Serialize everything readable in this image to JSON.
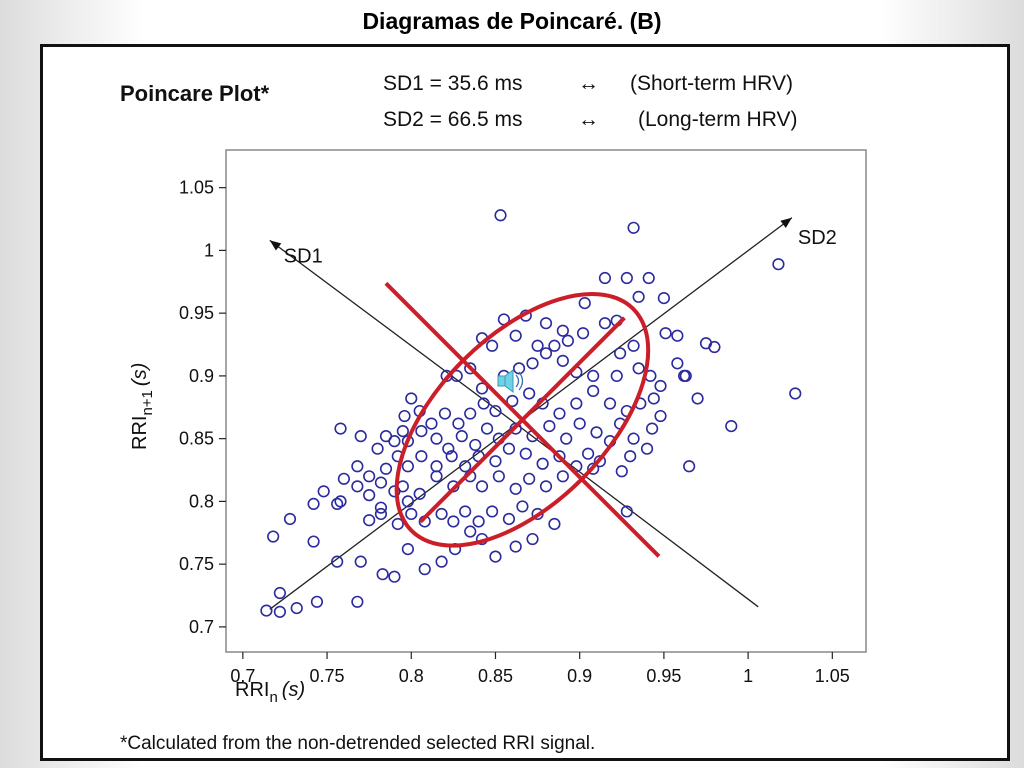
{
  "slide": {
    "title": "Diagramas de Poincaré. (B)"
  },
  "figure": {
    "heading": "Poincare Plot*",
    "sd1_line": {
      "label": "SD1 = 35.6 ms",
      "arrow": "↔",
      "desc": "(Short-term HRV)"
    },
    "sd2_line": {
      "label": "SD2 = 66.5 ms",
      "arrow": "↔",
      "desc": "(Long-term HRV)"
    },
    "footnote": "*Calculated from the non-detrended selected RRI signal."
  },
  "chart_data": {
    "type": "scatter",
    "title": "Poincare Plot*",
    "xlabel": "RRI_n (s)",
    "ylabel": "RRI_n+1 (s)",
    "xlim": [
      0.69,
      1.07
    ],
    "ylim": [
      0.68,
      1.08
    ],
    "x_ticks": [
      "0.7",
      "0.75",
      "0.8",
      "0.85",
      "0.9",
      "0.95",
      "1",
      "1.05"
    ],
    "y_ticks": [
      "0.7",
      "0.75",
      "0.8",
      "0.85",
      "0.9",
      "0.95",
      "1",
      "1.05"
    ],
    "grid": false,
    "marker_color": "#2b2b9e",
    "ellipse_color": "#cc1e28",
    "axis_labels": {
      "sd1": "SD1",
      "sd2": "SD2"
    },
    "centroid": [
      0.862,
      0.862
    ],
    "sd1_axis": {
      "from": [
        0.862,
        0.862
      ],
      "to": [
        0.716,
        1.008
      ],
      "back": [
        1.006,
        0.716
      ]
    },
    "sd2_axis": {
      "from": [
        0.716,
        0.714
      ],
      "to": [
        1.026,
        1.026
      ]
    },
    "ellipse": {
      "center": [
        0.866,
        0.865
      ],
      "angle_deg": 45,
      "sd1": 0.0356,
      "sd2": 0.0665,
      "scale": 1.4
    },
    "points": [
      [
        0.853,
        1.028
      ],
      [
        0.932,
        1.018
      ],
      [
        1.018,
        0.989
      ],
      [
        1.028,
        0.886
      ],
      [
        0.915,
        0.978
      ],
      [
        0.928,
        0.978
      ],
      [
        0.941,
        0.978
      ],
      [
        0.903,
        0.958
      ],
      [
        0.935,
        0.963
      ],
      [
        0.95,
        0.962
      ],
      [
        0.922,
        0.944
      ],
      [
        0.915,
        0.942
      ],
      [
        0.868,
        0.948
      ],
      [
        0.855,
        0.945
      ],
      [
        0.88,
        0.942
      ],
      [
        0.89,
        0.936
      ],
      [
        0.975,
        0.926
      ],
      [
        0.962,
        0.9
      ],
      [
        0.951,
        0.934
      ],
      [
        0.958,
        0.932
      ],
      [
        0.932,
        0.924
      ],
      [
        0.924,
        0.918
      ],
      [
        0.902,
        0.934
      ],
      [
        0.893,
        0.928
      ],
      [
        0.885,
        0.924
      ],
      [
        0.875,
        0.924
      ],
      [
        0.862,
        0.932
      ],
      [
        0.848,
        0.924
      ],
      [
        0.842,
        0.93
      ],
      [
        0.835,
        0.906
      ],
      [
        0.827,
        0.9
      ],
      [
        0.821,
        0.9
      ],
      [
        0.842,
        0.89
      ],
      [
        0.855,
        0.9
      ],
      [
        0.864,
        0.906
      ],
      [
        0.872,
        0.91
      ],
      [
        0.88,
        0.918
      ],
      [
        0.89,
        0.912
      ],
      [
        0.898,
        0.903
      ],
      [
        0.908,
        0.9
      ],
      [
        0.922,
        0.9
      ],
      [
        0.935,
        0.906
      ],
      [
        0.942,
        0.9
      ],
      [
        0.948,
        0.892
      ],
      [
        0.944,
        0.882
      ],
      [
        0.936,
        0.878
      ],
      [
        0.928,
        0.872
      ],
      [
        0.918,
        0.878
      ],
      [
        0.908,
        0.888
      ],
      [
        0.898,
        0.878
      ],
      [
        0.888,
        0.87
      ],
      [
        0.878,
        0.878
      ],
      [
        0.87,
        0.886
      ],
      [
        0.86,
        0.88
      ],
      [
        0.85,
        0.872
      ],
      [
        0.843,
        0.878
      ],
      [
        0.835,
        0.87
      ],
      [
        0.828,
        0.862
      ],
      [
        0.82,
        0.87
      ],
      [
        0.812,
        0.862
      ],
      [
        0.805,
        0.872
      ],
      [
        0.8,
        0.882
      ],
      [
        0.796,
        0.868
      ],
      [
        0.795,
        0.856
      ],
      [
        0.948,
        0.868
      ],
      [
        0.943,
        0.858
      ],
      [
        0.932,
        0.85
      ],
      [
        0.924,
        0.862
      ],
      [
        0.918,
        0.848
      ],
      [
        0.91,
        0.855
      ],
      [
        0.9,
        0.862
      ],
      [
        0.892,
        0.85
      ],
      [
        0.882,
        0.86
      ],
      [
        0.872,
        0.852
      ],
      [
        0.862,
        0.858
      ],
      [
        0.852,
        0.85
      ],
      [
        0.845,
        0.858
      ],
      [
        0.838,
        0.845
      ],
      [
        0.83,
        0.852
      ],
      [
        0.822,
        0.842
      ],
      [
        0.815,
        0.85
      ],
      [
        0.806,
        0.856
      ],
      [
        0.798,
        0.848
      ],
      [
        0.79,
        0.848
      ],
      [
        0.785,
        0.852
      ],
      [
        0.78,
        0.842
      ],
      [
        0.758,
        0.858
      ],
      [
        0.77,
        0.852
      ],
      [
        0.94,
        0.842
      ],
      [
        0.93,
        0.836
      ],
      [
        0.925,
        0.824
      ],
      [
        0.912,
        0.832
      ],
      [
        0.905,
        0.838
      ],
      [
        0.898,
        0.828
      ],
      [
        0.888,
        0.836
      ],
      [
        0.878,
        0.83
      ],
      [
        0.868,
        0.838
      ],
      [
        0.858,
        0.842
      ],
      [
        0.85,
        0.832
      ],
      [
        0.84,
        0.836
      ],
      [
        0.832,
        0.828
      ],
      [
        0.824,
        0.836
      ],
      [
        0.815,
        0.828
      ],
      [
        0.806,
        0.836
      ],
      [
        0.798,
        0.828
      ],
      [
        0.792,
        0.836
      ],
      [
        0.785,
        0.826
      ],
      [
        0.775,
        0.82
      ],
      [
        0.768,
        0.828
      ],
      [
        0.76,
        0.818
      ],
      [
        0.795,
        0.812
      ],
      [
        0.782,
        0.815
      ],
      [
        0.965,
        0.828
      ],
      [
        0.928,
        0.792
      ],
      [
        0.908,
        0.826
      ],
      [
        0.89,
        0.82
      ],
      [
        0.88,
        0.812
      ],
      [
        0.87,
        0.818
      ],
      [
        0.862,
        0.81
      ],
      [
        0.852,
        0.82
      ],
      [
        0.842,
        0.812
      ],
      [
        0.835,
        0.82
      ],
      [
        0.825,
        0.812
      ],
      [
        0.815,
        0.82
      ],
      [
        0.805,
        0.806
      ],
      [
        0.798,
        0.8
      ],
      [
        0.79,
        0.808
      ],
      [
        0.782,
        0.795
      ],
      [
        0.775,
        0.805
      ],
      [
        0.768,
        0.812
      ],
      [
        0.758,
        0.8
      ],
      [
        0.748,
        0.808
      ],
      [
        0.885,
        0.782
      ],
      [
        0.875,
        0.79
      ],
      [
        0.866,
        0.796
      ],
      [
        0.858,
        0.786
      ],
      [
        0.848,
        0.792
      ],
      [
        0.84,
        0.784
      ],
      [
        0.832,
        0.792
      ],
      [
        0.825,
        0.784
      ],
      [
        0.818,
        0.79
      ],
      [
        0.808,
        0.784
      ],
      [
        0.8,
        0.79
      ],
      [
        0.792,
        0.782
      ],
      [
        0.782,
        0.79
      ],
      [
        0.775,
        0.785
      ],
      [
        0.756,
        0.798
      ],
      [
        0.742,
        0.798
      ],
      [
        0.728,
        0.786
      ],
      [
        0.718,
        0.772
      ],
      [
        0.872,
        0.77
      ],
      [
        0.862,
        0.764
      ],
      [
        0.85,
        0.756
      ],
      [
        0.842,
        0.77
      ],
      [
        0.835,
        0.776
      ],
      [
        0.826,
        0.762
      ],
      [
        0.818,
        0.752
      ],
      [
        0.808,
        0.746
      ],
      [
        0.798,
        0.762
      ],
      [
        0.79,
        0.74
      ],
      [
        0.783,
        0.742
      ],
      [
        0.77,
        0.752
      ],
      [
        0.756,
        0.752
      ],
      [
        0.742,
        0.768
      ],
      [
        0.744,
        0.72
      ],
      [
        0.732,
        0.715
      ],
      [
        0.722,
        0.712
      ],
      [
        0.714,
        0.713
      ],
      [
        0.722,
        0.727
      ],
      [
        0.768,
        0.72
      ],
      [
        0.958,
        0.91
      ],
      [
        0.97,
        0.882
      ],
      [
        0.99,
        0.86
      ],
      [
        0.98,
        0.923
      ],
      [
        0.963,
        0.9
      ]
    ]
  }
}
